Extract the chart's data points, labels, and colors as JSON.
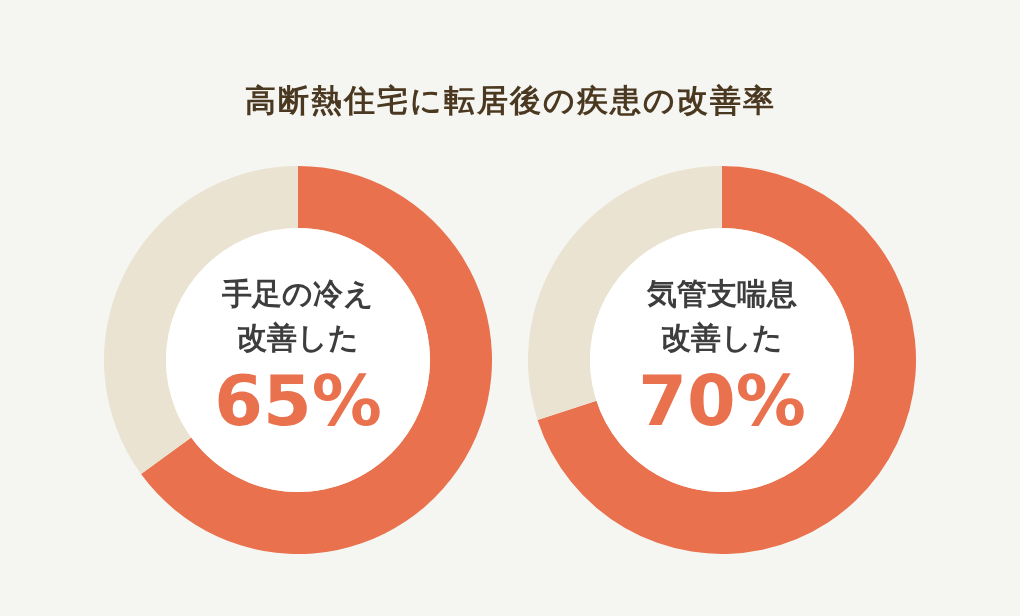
{
  "chart_data": [
    {
      "type": "donut",
      "title": "高断熱住宅に転居後の疾患の改善率",
      "categories": [
        "手足の冷え改善した",
        null
      ],
      "values": [
        65,
        35
      ],
      "colors": [
        "#e9714d",
        "#ebe3d1"
      ],
      "value_labels": [
        "65%",
        null
      ]
    },
    {
      "type": "donut",
      "categories": [
        "気管支喘息改善した",
        null
      ],
      "values": [
        70,
        30
      ],
      "colors": [
        "#e9714d",
        "#ebe3d1"
      ],
      "value_labels": [
        "70%",
        null
      ]
    }
  ]
}
